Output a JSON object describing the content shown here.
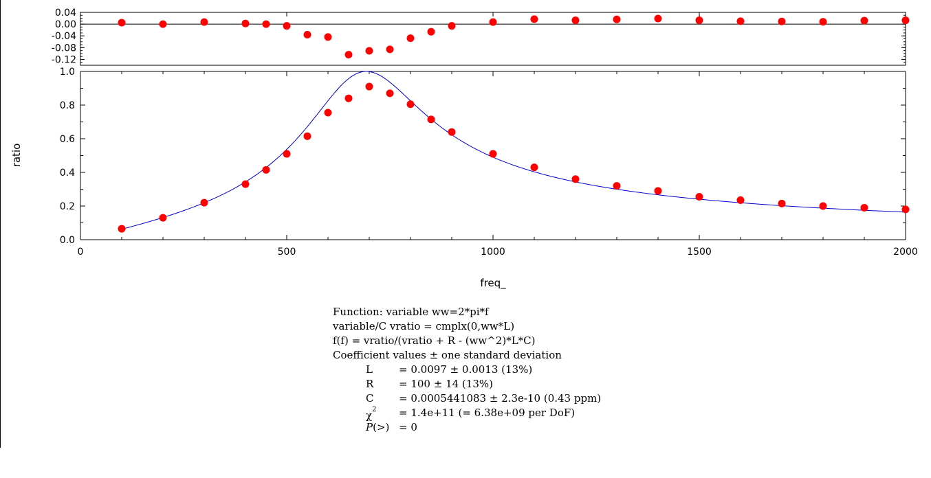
{
  "chart_data": [
    {
      "type": "scatter",
      "panel": "residuals",
      "xlim": [
        0,
        2000
      ],
      "ylim": [
        -0.14,
        0.04
      ],
      "y_ticks": [
        0.04,
        0.0,
        -0.04,
        -0.08,
        -0.12
      ],
      "y_tick_labels": [
        "0.04",
        "0.00",
        "-0.04",
        "-0.08",
        "-0.12"
      ],
      "zero_line": true,
      "series": [
        {
          "color": "#ff0000",
          "marker": "circle",
          "x": [
            100,
            200,
            300,
            400,
            450,
            500,
            550,
            600,
            650,
            700,
            750,
            800,
            850,
            900,
            1000,
            1100,
            1200,
            1300,
            1400,
            1500,
            1600,
            1700,
            1800,
            1900,
            2000
          ],
          "y": [
            0.005,
            0.0,
            0.007,
            0.002,
            0.0,
            -0.006,
            -0.036,
            -0.044,
            -0.104,
            -0.091,
            -0.086,
            -0.048,
            -0.026,
            -0.006,
            0.007,
            0.017,
            0.013,
            0.016,
            0.019,
            0.013,
            0.01,
            0.009,
            0.008,
            0.012,
            0.013
          ]
        }
      ]
    },
    {
      "type": "scatter",
      "panel": "main",
      "xlabel": "freq_",
      "ylabel": "ratio",
      "xlim": [
        0,
        2000
      ],
      "ylim": [
        0,
        1.0
      ],
      "x_ticks": [
        0,
        500,
        1000,
        1500,
        2000
      ],
      "x_tick_labels": [
        "0",
        "500",
        "1000",
        "1500",
        "2000"
      ],
      "y_ticks": [
        0.0,
        0.2,
        0.4,
        0.6,
        0.8,
        1.0
      ],
      "y_tick_labels": [
        "0.0",
        "0.2",
        "0.4",
        "0.6",
        "0.8",
        "1.0"
      ],
      "grid": false,
      "series": [
        {
          "color": "#ff0000",
          "marker": "circle",
          "x": [
            100,
            200,
            300,
            400,
            450,
            500,
            550,
            600,
            650,
            700,
            750,
            800,
            850,
            900,
            1000,
            1100,
            1200,
            1300,
            1400,
            1500,
            1600,
            1700,
            1800,
            1900,
            2000
          ],
          "y": [
            0.065,
            0.13,
            0.22,
            0.33,
            0.415,
            0.51,
            0.615,
            0.755,
            0.84,
            0.91,
            0.87,
            0.805,
            0.715,
            0.64,
            0.51,
            0.43,
            0.36,
            0.32,
            0.29,
            0.255,
            0.235,
            0.215,
            0.2,
            0.19,
            0.18
          ]
        }
      ],
      "fit_curve": {
        "color": "#0000cc",
        "L": 0.0097,
        "R": 100,
        "C": 0.0005441083,
        "x_range": [
          100,
          2000
        ]
      }
    }
  ],
  "fit_info": {
    "line1": "Function: variable ww=2*pi*f",
    "line2": "variable/C vratio = cmplx(0,ww*L)",
    "line3": "f(f) = vratio/(vratio + R - (ww^2)*L*C)",
    "line4": "Coefficient values ± one standard deviation",
    "coefficients": [
      {
        "name": "L",
        "value": "= 0.0097 ± 0.0013  (13%)"
      },
      {
        "name": "R",
        "value": "= 100 ± 14  (13%)"
      },
      {
        "name": "C",
        "value": "= 0.0005441083 ± 2.3e-10  (0.43 ppm)"
      }
    ],
    "chi_symbol": "χ",
    "chi_exponent": "2",
    "chi_value": "= 1.4e+11 (= 6.38e+09 per DoF)",
    "p_label": "P",
    "p_suffix": "(>)",
    "p_value": "= 0"
  },
  "colors": {
    "markers": "#ff0000",
    "fit": "#0000cc",
    "axes": "#000000"
  }
}
